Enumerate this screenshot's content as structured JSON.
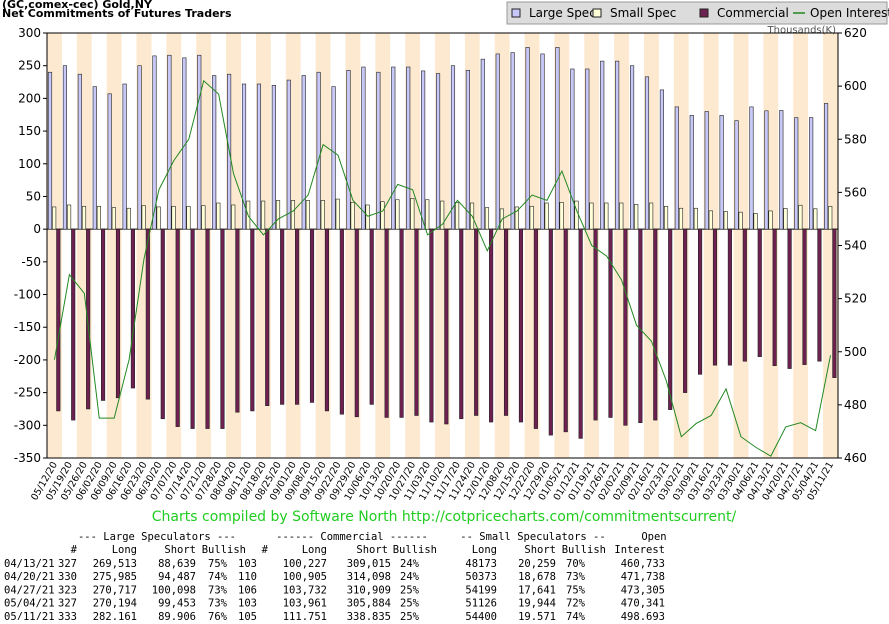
{
  "chart_data": {
    "type": "bar",
    "title": "(GC,comex-cec) Gold,NY",
    "subtitle": "Net Commitments of Futures Traders",
    "y2_label": "Thousands(K)",
    "footer": "Charts compiled by Software North  http://cotpricecharts.com/commitmentscurrent/",
    "categories": [
      "05/12/20",
      "05/19/20",
      "05/26/20",
      "06/02/20",
      "06/09/20",
      "06/16/20",
      "06/23/20",
      "06/30/20",
      "07/07/20",
      "07/14/20",
      "07/21/20",
      "07/28/20",
      "08/04/20",
      "08/11/20",
      "08/18/20",
      "08/25/20",
      "09/01/20",
      "09/08/20",
      "09/15/20",
      "09/22/20",
      "09/29/20",
      "10/06/20",
      "10/13/20",
      "10/20/20",
      "10/27/20",
      "11/03/20",
      "11/10/20",
      "11/17/20",
      "11/24/20",
      "12/01/20",
      "12/08/20",
      "12/15/20",
      "12/22/20",
      "12/29/20",
      "01/05/21",
      "01/12/21",
      "01/19/21",
      "01/26/21",
      "02/02/21",
      "02/09/21",
      "02/16/21",
      "02/23/21",
      "03/02/21",
      "03/09/21",
      "03/16/21",
      "03/23/21",
      "03/30/21",
      "04/06/21",
      "04/13/21",
      "04/20/21",
      "04/27/21",
      "05/04/21",
      "05/11/21"
    ],
    "series": [
      {
        "name": "Large Spec",
        "color": "#c8c8f8",
        "type": "bar",
        "values": [
          240,
          250,
          237,
          218,
          207,
          222,
          250,
          265,
          266,
          262,
          266,
          235,
          237,
          222,
          222,
          220,
          228,
          235,
          240,
          218,
          243,
          248,
          240,
          248,
          248,
          242,
          238,
          250,
          243,
          260,
          268,
          270,
          278,
          268,
          278,
          245,
          245,
          257,
          257,
          250,
          233,
          213,
          187,
          174,
          180,
          174,
          166,
          187,
          181,
          181.5,
          170.6,
          170.7,
          192.3
        ]
      },
      {
        "name": "Small Spec",
        "color": "#ffffd8",
        "type": "bar",
        "values": [
          34,
          37,
          35,
          35,
          33,
          32,
          36,
          34,
          35,
          35,
          36,
          40,
          37,
          43,
          43,
          44,
          44,
          44,
          44,
          46,
          41,
          37,
          42,
          45,
          47,
          45,
          43,
          41,
          40,
          33,
          31,
          34,
          35,
          40,
          41,
          43,
          40,
          40,
          40,
          38,
          40,
          35,
          32,
          32,
          28,
          27,
          26,
          24,
          27.9,
          31.7,
          36.6,
          31.2,
          34.8
        ]
      },
      {
        "name": "Commercial",
        "color": "#6e2050",
        "type": "bar",
        "values": [
          -278,
          -292,
          -275,
          -262,
          -258,
          -243,
          -260,
          -290,
          -302,
          -305,
          -305,
          -305,
          -280,
          -278,
          -270,
          -268,
          -268,
          -265,
          -278,
          -283,
          -287,
          -268,
          -288,
          -288,
          -285,
          -295,
          -298,
          -290,
          -285,
          -295,
          -285,
          -295,
          -305,
          -315,
          -310,
          -320,
          -292,
          -288,
          -300,
          -296,
          -292,
          -276,
          -250,
          -222,
          -208,
          -208,
          -202,
          -195,
          -208.8,
          -213.2,
          -207.2,
          -201.9,
          -227.1
        ]
      },
      {
        "name": "Open Interest",
        "color": "#228822",
        "type": "line",
        "axis": "y2",
        "values": [
          497,
          529,
          522,
          475,
          475,
          497,
          535,
          561,
          572,
          580,
          602,
          597,
          567,
          551,
          544,
          550,
          553,
          559,
          578,
          574,
          557,
          551,
          553,
          563,
          561,
          544,
          548,
          557,
          551,
          538,
          550,
          553,
          559,
          557,
          568,
          553,
          540,
          536,
          527,
          510,
          504,
          489,
          468,
          473,
          476,
          486,
          468,
          464,
          460.7,
          471.7,
          473.3,
          470.3,
          498.7
        ]
      }
    ],
    "ylim": [
      -350,
      300
    ],
    "yticks": [
      -350,
      -300,
      -250,
      -200,
      -150,
      -100,
      -50,
      0,
      50,
      100,
      150,
      200,
      250,
      300
    ],
    "y2lim": [
      460,
      620
    ],
    "y2ticks": [
      460,
      480,
      500,
      520,
      540,
      560,
      580,
      600,
      620
    ],
    "legend": "top-right"
  },
  "table": {
    "group_headers": [
      "--- Large Speculators ---",
      "------ Commercial ------",
      "-- Small Speculators --",
      "Open"
    ],
    "columns": [
      "#",
      "Long",
      "Short",
      "Bullish",
      "#",
      "Long",
      "Short",
      "Bullish",
      "Long",
      "Short",
      "Bullish",
      "Interest"
    ],
    "rows": [
      [
        "04/13/21",
        "327",
        "269,513",
        "88,639",
        "75%",
        "103",
        "100,227",
        "309,015",
        "24%",
        "48173",
        "20,259",
        "70%",
        "460,733"
      ],
      [
        "04/20/21",
        "330",
        "275,985",
        "94,487",
        "74%",
        "110",
        "100,905",
        "314,098",
        "24%",
        "50373",
        "18,678",
        "73%",
        "471,738"
      ],
      [
        "04/27/21",
        "323",
        "270,717",
        "100,098",
        "73%",
        "106",
        "103,732",
        "310,909",
        "25%",
        "54199",
        "17,641",
        "75%",
        "473,305"
      ],
      [
        "05/04/21",
        "327",
        "270,194",
        "99,453",
        "73%",
        "103",
        "103,961",
        "305,884",
        "25%",
        "51126",
        "19,944",
        "72%",
        "470,341"
      ],
      [
        "05/11/21",
        "333",
        "282,161",
        "89,906",
        "76%",
        "105",
        "111,751",
        "338,835",
        "25%",
        "54400",
        "19,571",
        "74%",
        "498,693"
      ]
    ]
  }
}
